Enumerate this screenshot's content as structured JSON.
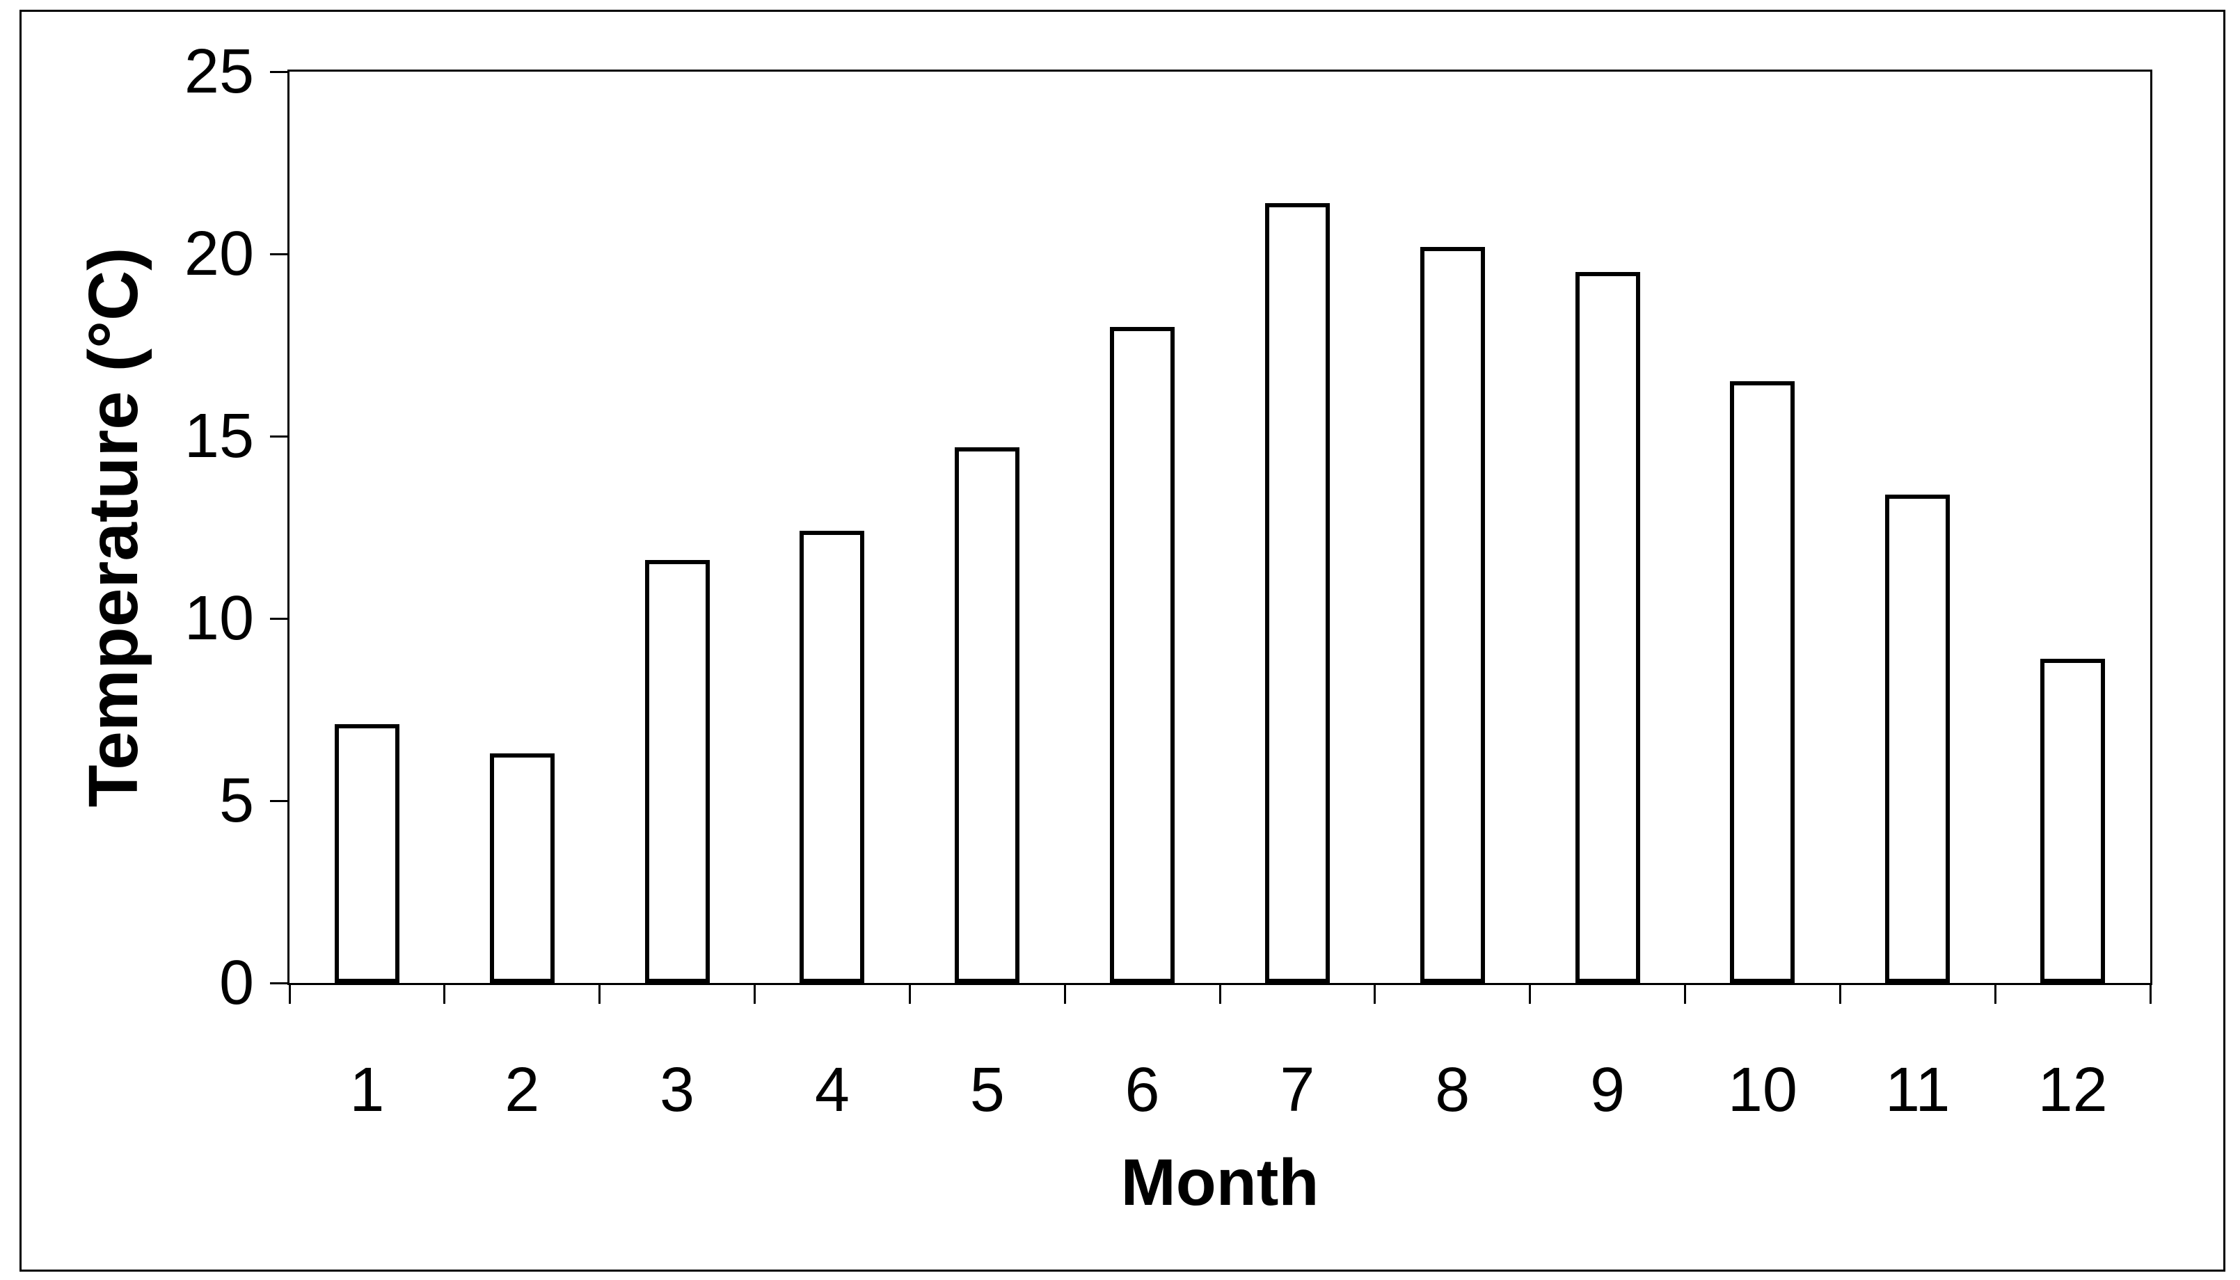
{
  "chart_data": {
    "type": "bar",
    "title": "",
    "categories": [
      "1",
      "2",
      "3",
      "4",
      "5",
      "6",
      "7",
      "8",
      "9",
      "10",
      "11",
      "12"
    ],
    "values": [
      7.1,
      6.3,
      11.6,
      12.4,
      14.7,
      18.0,
      21.4,
      20.2,
      19.5,
      16.5,
      13.4,
      8.9
    ],
    "xlabel": "Month",
    "ylabel": "Temperature (°C)",
    "ylim": [
      0,
      25
    ],
    "yticks": [
      0,
      5,
      10,
      15,
      20,
      25
    ],
    "grid": false,
    "legend": "none",
    "bar_fill_color": "#ffffff",
    "bar_border_color": "#000000",
    "axis_color": "#000000",
    "background_color": "#ffffff"
  }
}
